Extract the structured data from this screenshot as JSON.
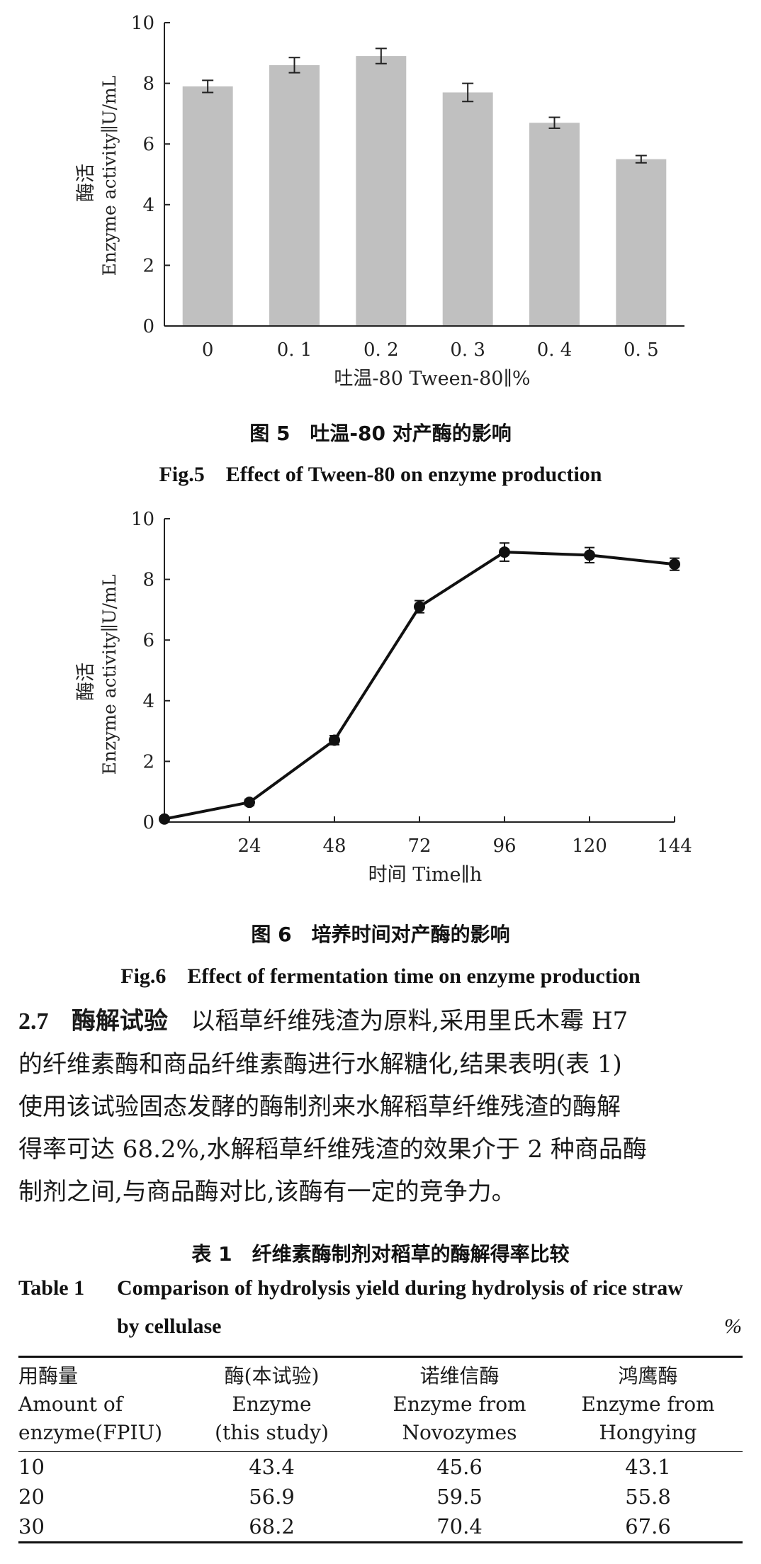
{
  "figure5": {
    "caption_cn": "图 5　吐温-80 对产酶的影响",
    "caption_en": "Fig.5　Effect of Tween-80 on enzyme production",
    "chart_data": {
      "type": "bar",
      "categories": [
        "0",
        "0. 1",
        "0. 2",
        "0. 3",
        "0. 4",
        "0. 5"
      ],
      "values": [
        7.9,
        8.6,
        8.9,
        7.7,
        6.7,
        5.5
      ],
      "errors": [
        0.2,
        0.25,
        0.25,
        0.3,
        0.18,
        0.12
      ],
      "ylim": [
        0,
        10
      ],
      "yticks": [
        "0",
        "2",
        "4",
        "6",
        "8",
        "10"
      ],
      "ylabel_cn": "酶活",
      "ylabel_en": "Enzyme activity∥U/mL",
      "xlabel": "吐温-80 Tween-80∥%",
      "bar_color": "#c0c0c0"
    }
  },
  "figure6": {
    "caption_cn": "图 6　培养时间对产酶的影响",
    "caption_en": "Fig.6　Effect of fermentation time on enzyme production",
    "chart_data": {
      "type": "line",
      "x": [
        0,
        24,
        48,
        72,
        96,
        120,
        144
      ],
      "y": [
        0.1,
        0.65,
        2.7,
        7.1,
        8.9,
        8.8,
        8.5
      ],
      "errors": [
        0.05,
        0.1,
        0.15,
        0.2,
        0.3,
        0.25,
        0.2
      ],
      "xticks": [
        "24",
        "48",
        "72",
        "96",
        "120",
        "144"
      ],
      "xlim": [
        0,
        144
      ],
      "ylim": [
        0,
        10
      ],
      "yticks": [
        "0",
        "2",
        "4",
        "6",
        "8",
        "10"
      ],
      "ylabel_cn": "酶活",
      "ylabel_en": "Enzyme activity∥U/mL",
      "xlabel": "时间 Time∥h"
    }
  },
  "section": {
    "number": "2.7",
    "title": "酶解试验",
    "lines": [
      "以稻草纤维残渣为原料,采用里氏木霉 H7",
      "的纤维素酶和商品纤维素酶进行水解糖化,结果表明(表 1)",
      "使用该试验固态发酵的酶制剂来水解稻草纤维残渣的酶解",
      "得率可达 68.2%,水解稻草纤维残渣的效果介于 2 种商品酶",
      "制剂之间,与商品酶对比,该酶有一定的竞争力。"
    ]
  },
  "table1": {
    "caption_cn": "表 1　纤维素酶制剂对稻草的酶解得率比较",
    "caption_en_label": "Table 1",
    "caption_en_line1": "Comparison of hydrolysis yield during hydrolysis of rice straw",
    "caption_en_line2": "by cellulase",
    "unit": "%",
    "headers": [
      [
        "用酶量",
        "Amount of",
        "enzyme(FPIU)"
      ],
      [
        "酶(本试验)",
        "Enzyme",
        "(this study)"
      ],
      [
        "诺维信酶",
        "Enzyme from",
        "Novozymes"
      ],
      [
        "鸿鹰酶",
        "Enzyme from",
        "Hongying"
      ]
    ],
    "rows": [
      [
        "10",
        "43.4",
        "45.6",
        "43.1"
      ],
      [
        "20",
        "56.9",
        "59.5",
        "55.8"
      ],
      [
        "30",
        "68.2",
        "70.4",
        "67.6"
      ]
    ]
  }
}
